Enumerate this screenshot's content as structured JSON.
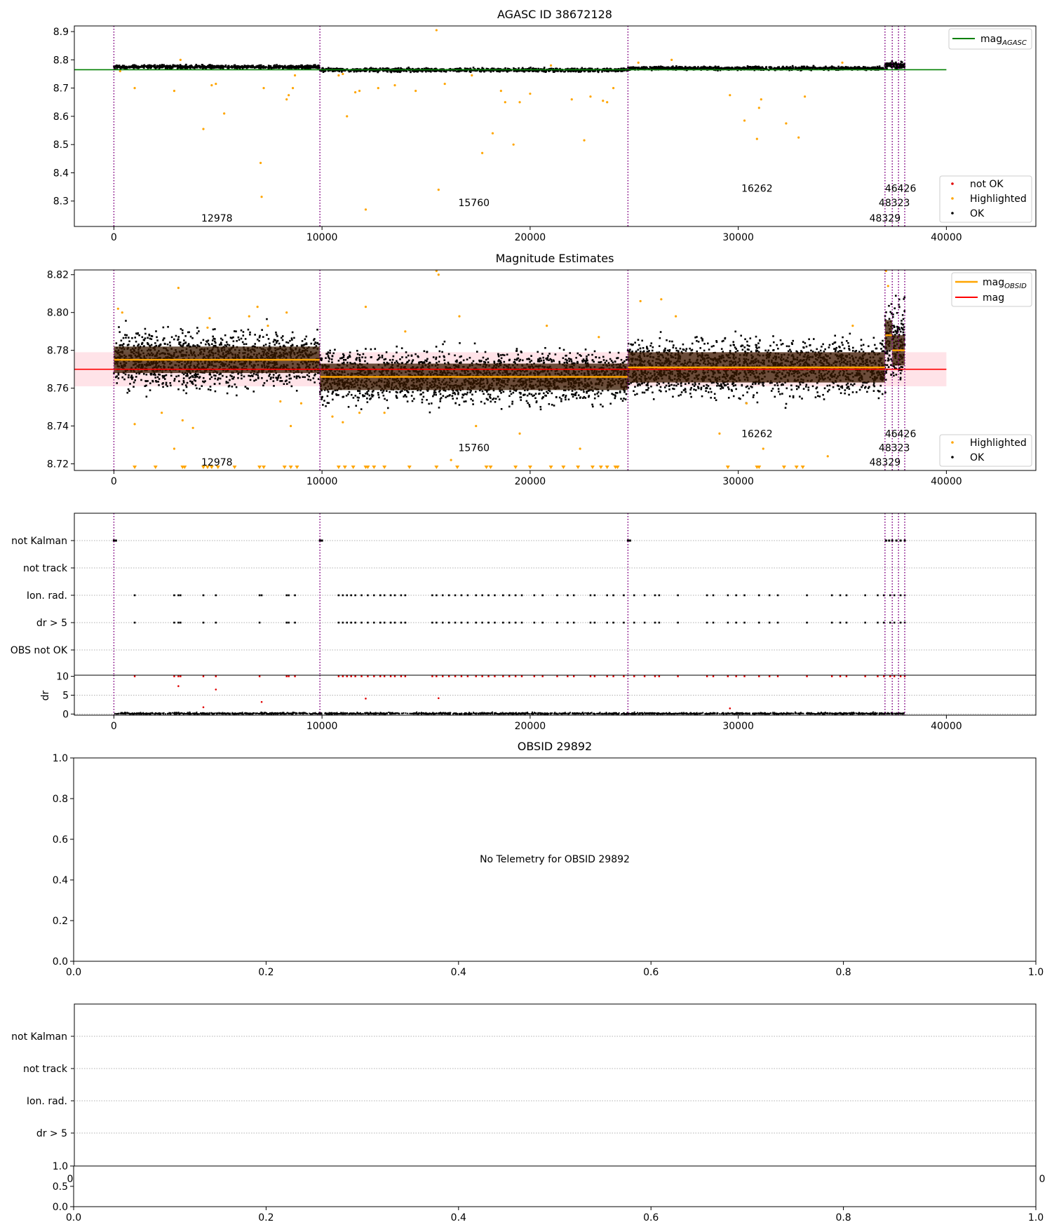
{
  "figure": {
    "background": "#ffffff"
  },
  "colors": {
    "ok": "#000000",
    "highlighted": "#ffa500",
    "not_ok": "#e00000",
    "agasc_line": "#008000",
    "obs_vline": "#800080",
    "mag_line": "#ff0000",
    "mag_band": "#ffc0cb",
    "mag_obsid_line": "#ffa500",
    "obs_band": "#3a1a00",
    "grid": "#b0b0b0"
  },
  "obs_boundaries": [
    0,
    9900,
    24700,
    37050,
    37400,
    37700,
    38000
  ],
  "obsid_annotations": [
    {
      "label": "12978",
      "x": 4950,
      "y_level": 0
    },
    {
      "label": "15760",
      "x": 17300,
      "y_level": 1
    },
    {
      "label": "16262",
      "x": 30900,
      "y_level": 2
    },
    {
      "label": "46426",
      "x": 37800,
      "y_level": 2
    },
    {
      "label": "48323",
      "x": 37500,
      "y_level": 1
    },
    {
      "label": "48329",
      "x": 37050,
      "y_level": 0
    }
  ],
  "chart_data": [
    {
      "id": "agasc",
      "type": "scatter",
      "title": "AGASC ID 38672128",
      "xlim": [
        -1900,
        44300
      ],
      "ylim": [
        8.21,
        8.92
      ],
      "xticks": [
        0,
        10000,
        20000,
        30000,
        40000
      ],
      "yticks": [
        8.3,
        8.4,
        8.5,
        8.6,
        8.7,
        8.8,
        8.9
      ],
      "ytick_labels": [
        "8.3",
        "8.4",
        "8.5",
        "8.6",
        "8.7",
        "8.8",
        "8.9"
      ],
      "agasc_mag": 8.765,
      "hline_xrange": [
        -1900,
        40000
      ],
      "legend_upper": {
        "main": "mag",
        "sub": "AGASC"
      },
      "legend_lower": [
        "not OK",
        "Highlighted",
        "OK"
      ],
      "ok_bands": [
        {
          "x": [
            0,
            9900
          ],
          "center": 8.775,
          "spread": 0.012
        },
        {
          "x": [
            9900,
            24700
          ],
          "center": 8.764,
          "spread": 0.012
        },
        {
          "x": [
            24700,
            37050
          ],
          "center": 8.77,
          "spread": 0.012
        },
        {
          "x": [
            37050,
            38000
          ],
          "center": 8.78,
          "spread": 0.02
        }
      ],
      "highlighted_points": [
        [
          300,
          8.76
        ],
        [
          1000,
          8.7
        ],
        [
          2900,
          8.69
        ],
        [
          3200,
          8.8
        ],
        [
          4300,
          8.555
        ],
        [
          4700,
          8.71
        ],
        [
          4900,
          8.715
        ],
        [
          5300,
          8.61
        ],
        [
          7050,
          8.435
        ],
        [
          7100,
          8.315
        ],
        [
          7200,
          8.7
        ],
        [
          8300,
          8.66
        ],
        [
          8400,
          8.675
        ],
        [
          8600,
          8.7
        ],
        [
          8700,
          8.745
        ],
        [
          10800,
          8.745
        ],
        [
          11200,
          8.6
        ],
        [
          11000,
          8.75
        ],
        [
          11600,
          8.685
        ],
        [
          11800,
          8.69
        ],
        [
          12100,
          8.27
        ],
        [
          12700,
          8.7
        ],
        [
          13500,
          8.71
        ],
        [
          14500,
          8.69
        ],
        [
          15500,
          8.905
        ],
        [
          15600,
          8.34
        ],
        [
          15900,
          8.715
        ],
        [
          17200,
          8.745
        ],
        [
          17700,
          8.47
        ],
        [
          18200,
          8.54
        ],
        [
          18600,
          8.69
        ],
        [
          18800,
          8.65
        ],
        [
          19200,
          8.5
        ],
        [
          19500,
          8.65
        ],
        [
          20000,
          8.68
        ],
        [
          21000,
          8.78
        ],
        [
          22000,
          8.66
        ],
        [
          22600,
          8.515
        ],
        [
          22900,
          8.67
        ],
        [
          23500,
          8.655
        ],
        [
          23700,
          8.65
        ],
        [
          24000,
          8.7
        ],
        [
          25200,
          8.79
        ],
        [
          26800,
          8.8
        ],
        [
          29600,
          8.675
        ],
        [
          30300,
          8.585
        ],
        [
          30900,
          8.52
        ],
        [
          31000,
          8.63
        ],
        [
          31100,
          8.66
        ],
        [
          32300,
          8.575
        ],
        [
          32900,
          8.525
        ],
        [
          33200,
          8.67
        ],
        [
          35000,
          8.79
        ]
      ],
      "annotation_y": [
        8.24,
        8.295,
        8.345
      ]
    },
    {
      "id": "magnitude_estimates",
      "type": "scatter",
      "title": "Magnitude Estimates",
      "xlim": [
        -1900,
        44300
      ],
      "ylim": [
        8.7165,
        8.8225
      ],
      "xticks": [
        0,
        10000,
        20000,
        30000,
        40000
      ],
      "yticks": [
        8.72,
        8.74,
        8.76,
        8.78,
        8.8,
        8.82
      ],
      "ytick_labels": [
        "8.72",
        "8.74",
        "8.76",
        "8.78",
        "8.80",
        "8.82"
      ],
      "mag": 8.77,
      "mag_band": [
        8.761,
        8.779
      ],
      "hline_xrange": [
        -1900,
        40000
      ],
      "legend_upper": [
        {
          "main": "mag",
          "sub": "OBSID"
        },
        {
          "main": "mag",
          "sub": ""
        }
      ],
      "legend_lower": [
        "Highlighted",
        "OK"
      ],
      "obs_mags": [
        {
          "x": [
            0,
            9900
          ],
          "mag": 8.775,
          "band": [
            8.768,
            8.782
          ]
        },
        {
          "x": [
            9900,
            24700
          ],
          "mag": 8.766,
          "band": [
            8.759,
            8.773
          ]
        },
        {
          "x": [
            24700,
            37050
          ],
          "mag": 8.771,
          "band": [
            8.763,
            8.779
          ]
        },
        {
          "x": [
            37050,
            37400
          ],
          "mag": 8.788,
          "band": [
            8.78,
            8.796
          ]
        },
        {
          "x": [
            37400,
            38000
          ],
          "mag": 8.78,
          "band": [
            8.772,
            8.788
          ]
        }
      ],
      "ok_bands": [
        {
          "x": [
            0,
            9900
          ],
          "center": 8.775,
          "spread": 0.028
        },
        {
          "x": [
            9900,
            24700
          ],
          "center": 8.766,
          "spread": 0.026
        },
        {
          "x": [
            24700,
            37050
          ],
          "center": 8.771,
          "spread": 0.028
        },
        {
          "x": [
            37050,
            38000
          ],
          "center": 8.785,
          "spread": 0.04
        }
      ],
      "highlighted_points": [
        [
          200,
          8.802
        ],
        [
          400,
          8.8
        ],
        [
          1000,
          8.741
        ],
        [
          2300,
          8.747
        ],
        [
          2900,
          8.728
        ],
        [
          3100,
          8.813
        ],
        [
          3300,
          8.743
        ],
        [
          3800,
          8.739
        ],
        [
          4500,
          8.792
        ],
        [
          4600,
          8.797
        ],
        [
          6500,
          8.798
        ],
        [
          6900,
          8.803
        ],
        [
          7400,
          8.793
        ],
        [
          8300,
          8.8
        ],
        [
          8500,
          8.74
        ],
        [
          8000,
          8.753
        ],
        [
          9000,
          8.752
        ],
        [
          10500,
          8.745
        ],
        [
          11000,
          8.742
        ],
        [
          11800,
          8.747
        ],
        [
          12100,
          8.803
        ],
        [
          13000,
          8.747
        ],
        [
          14000,
          8.79
        ],
        [
          15500,
          8.822
        ],
        [
          15600,
          8.82
        ],
        [
          16200,
          8.722
        ],
        [
          16600,
          8.798
        ],
        [
          17400,
          8.74
        ],
        [
          19500,
          8.736
        ],
        [
          20800,
          8.793
        ],
        [
          22400,
          8.728
        ],
        [
          23300,
          8.787
        ],
        [
          25300,
          8.806
        ],
        [
          26300,
          8.807
        ],
        [
          27000,
          8.798
        ],
        [
          29100,
          8.736
        ],
        [
          30400,
          8.752
        ],
        [
          31200,
          8.728
        ],
        [
          34300,
          8.724
        ],
        [
          35500,
          8.793
        ],
        [
          37100,
          8.822
        ],
        [
          37200,
          8.814
        ]
      ],
      "clipped_low_x": [
        1000,
        2000,
        3300,
        3400,
        4300,
        4500,
        4700,
        5000,
        5800,
        7000,
        7200,
        8200,
        8500,
        8800,
        10800,
        11100,
        11500,
        12100,
        12200,
        12500,
        13000,
        14200,
        15500,
        16500,
        17900,
        18100,
        19300,
        20000,
        21000,
        21600,
        22300,
        23000,
        23400,
        23700,
        24100,
        24200,
        29500,
        30900,
        31000,
        32200,
        32800,
        33100
      ],
      "annotation_y": [
        8.721,
        8.7285,
        8.736
      ]
    },
    {
      "id": "flags",
      "type": "scatter",
      "categories": [
        "not Kalman",
        "not track",
        "Ion. rad.",
        "dr > 5",
        "OBS not OK"
      ],
      "xlim": [
        -1900,
        44300
      ],
      "xticks": [
        0,
        10000,
        20000,
        30000,
        40000
      ],
      "not_kalman_x": [
        0,
        50,
        100,
        9900,
        9950,
        10000,
        24700,
        24750,
        24800,
        37100,
        37250,
        37400,
        37600,
        37800,
        38000
      ],
      "ion_rad_x": [
        1000,
        2900,
        3100,
        3200,
        4300,
        4900,
        7000,
        7100,
        8300,
        8400,
        8700,
        10800,
        11000,
        11200,
        11400,
        11600,
        11900,
        12200,
        12500,
        12800,
        13000,
        13300,
        13500,
        13800,
        14000,
        15300,
        15500,
        15800,
        16100,
        16400,
        16700,
        17000,
        17400,
        17700,
        18000,
        18300,
        18700,
        19000,
        19300,
        19600,
        20200,
        20600,
        21300,
        21800,
        22100,
        22900,
        23100,
        23700,
        24000,
        24500,
        25000,
        25500,
        26000,
        26200,
        27100,
        28500,
        28800,
        29500,
        29900,
        30300,
        31000,
        31500,
        31900,
        33300,
        34500,
        34900,
        35200,
        36100,
        36700,
        37000,
        37300,
        37500,
        37800,
        38000
      ],
      "dr5_x": [
        1000,
        2900,
        3100,
        3200,
        4300,
        4900,
        7000,
        8300,
        8400,
        8700,
        10800,
        11000,
        11200,
        11400,
        11600,
        11900,
        12200,
        12500,
        12800,
        13000,
        13300,
        13500,
        13800,
        14000,
        15300,
        15500,
        15800,
        16100,
        16400,
        16700,
        17000,
        17400,
        17700,
        18000,
        18300,
        18700,
        19000,
        19300,
        19600,
        20200,
        20600,
        21300,
        21800,
        22100,
        22900,
        23100,
        23700,
        24000,
        24500,
        25000,
        25500,
        26000,
        26200,
        27100,
        28500,
        28800,
        29500,
        29900,
        30300,
        31000,
        31500,
        31900,
        33300,
        34500,
        34900,
        35200,
        36100,
        36700,
        37000,
        37300,
        37500,
        37800,
        38000
      ]
    },
    {
      "id": "dr",
      "type": "scatter",
      "ylabel": "dr",
      "xlim": [
        -1900,
        44300
      ],
      "ylim": [
        -0.3,
        10.3
      ],
      "xticks": [
        0,
        10000,
        20000,
        30000,
        40000
      ],
      "yticks": [
        0,
        5,
        10
      ],
      "ytick_labels": [
        "0",
        "5",
        "10"
      ],
      "capped_value": 10,
      "outliers": [
        [
          3100,
          7.4
        ],
        [
          4900,
          6.5
        ],
        [
          7100,
          3.2
        ],
        [
          12100,
          4.1
        ],
        [
          15600,
          4.2
        ],
        [
          4300,
          1.8
        ],
        [
          29600,
          1.5
        ]
      ]
    },
    {
      "id": "obsid_panel",
      "type": "scatter",
      "title": "OBSID 29892",
      "message": "No Telemetry for OBSID 29892",
      "xlim": [
        0,
        1
      ],
      "ylim": [
        0,
        1
      ],
      "xticks": [
        0,
        0.2,
        0.4,
        0.6,
        0.8,
        1.0
      ],
      "yticks": [
        0,
        0.2,
        0.4,
        0.6,
        0.8,
        1.0
      ],
      "tick_labels": [
        "0.0",
        "0.2",
        "0.4",
        "0.6",
        "0.8",
        "1.0"
      ]
    },
    {
      "id": "obsid_flags",
      "type": "scatter",
      "categories": [
        "not Kalman",
        "not track",
        "Ion. rad.",
        "dr > 5"
      ],
      "overlap_labels": [
        "0",
        "0"
      ]
    },
    {
      "id": "obsid_dr",
      "type": "scatter",
      "xlim": [
        0,
        1
      ],
      "ylim": [
        0,
        1
      ],
      "xticks": [
        0,
        0.2,
        0.4,
        0.6,
        0.8,
        1.0
      ],
      "xtick_labels": [
        "0.0",
        "0.2",
        "0.4",
        "0.6",
        "0.8",
        "1.0"
      ],
      "yticks": [
        0,
        0.5,
        1.0
      ],
      "ytick_labels": [
        "0.0",
        "0.5",
        "1.0"
      ]
    }
  ]
}
